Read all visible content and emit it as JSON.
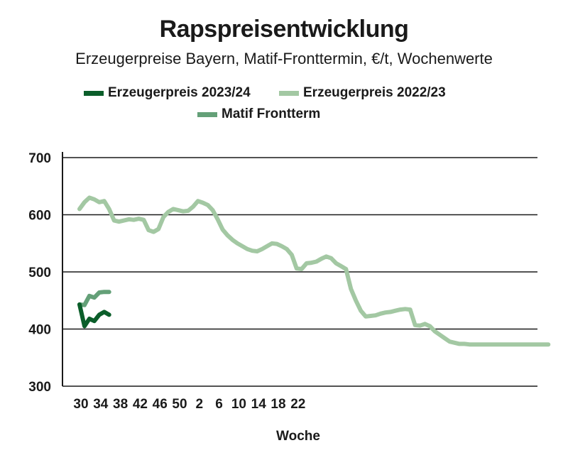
{
  "colors": {
    "series_2023_24": "#0b5e2a",
    "series_2022_23": "#a3c8a3",
    "matif": "#64a078",
    "axis": "#1a1a1a",
    "grid": "#1a1a1a"
  },
  "chart_data": {
    "type": "line",
    "title": "Rapspreisentwicklung",
    "subtitle": "Erzeugerpreise Bayern, Matif-Fronttermin, €/t, Wochenwerte",
    "xlabel": "Woche",
    "ylabel": "",
    "ylim": [
      300,
      700
    ],
    "yticks": [
      300,
      400,
      500,
      600,
      700
    ],
    "xticks": [
      "30",
      "34",
      "38",
      "42",
      "46",
      "50",
      "2",
      "6",
      "10",
      "14",
      "18",
      "22"
    ],
    "grid": "horizontal",
    "legend_position": "top",
    "series": [
      {
        "name": "Erzeugerpreis 2023/24",
        "x": [
          0,
          1,
          2,
          3,
          4,
          5,
          6
        ],
        "values": [
          443,
          405,
          418,
          414,
          425,
          430,
          425
        ]
      },
      {
        "name": "Erzeugerpreis 2022/23",
        "x": [
          0,
          1,
          2,
          3,
          4,
          5,
          6,
          7,
          8,
          9,
          10,
          11,
          12,
          13,
          14,
          15,
          16,
          17,
          18,
          19,
          20,
          21,
          22,
          23,
          24,
          25,
          26,
          27,
          28,
          29,
          30,
          31,
          32,
          33,
          34,
          35,
          36,
          37,
          38,
          39,
          40,
          41,
          42,
          43,
          44,
          45,
          46,
          47,
          48,
          49,
          50,
          51,
          52,
          53,
          54,
          55,
          56,
          57,
          58,
          59,
          60,
          61,
          62,
          63,
          64,
          65,
          66,
          67,
          68,
          69,
          70,
          71,
          72,
          73,
          74,
          75,
          76,
          77,
          78,
          79,
          80,
          81,
          82,
          83,
          84,
          85,
          86,
          87,
          88,
          89,
          90,
          91,
          92,
          93,
          94,
          95
        ],
        "values": [
          610,
          622,
          630,
          627,
          622,
          624,
          610,
          590,
          588,
          590,
          592,
          591,
          593,
          591,
          573,
          570,
          575,
          596,
          605,
          610,
          608,
          606,
          607,
          614,
          624,
          621,
          617,
          608,
          592,
          574,
          564,
          556,
          550,
          545,
          540,
          537,
          536,
          540,
          545,
          550,
          549,
          545,
          540,
          530,
          506,
          505,
          515,
          516,
          518,
          523,
          527,
          524,
          515,
          510,
          505,
          470,
          450,
          432,
          422,
          423,
          424,
          427,
          429,
          430,
          432,
          434,
          435,
          434,
          407,
          406,
          409,
          405,
          396,
          390,
          384,
          378,
          376,
          374,
          374,
          373,
          373,
          373,
          373,
          373,
          373,
          373,
          373,
          373,
          373,
          373,
          373,
          373,
          373,
          373,
          373,
          373
        ]
      },
      {
        "name": "Matif Frontterm",
        "x": [
          0,
          1,
          2,
          3,
          4,
          5,
          6
        ],
        "values": [
          443,
          442,
          458,
          455,
          464,
          465,
          465
        ]
      }
    ]
  }
}
